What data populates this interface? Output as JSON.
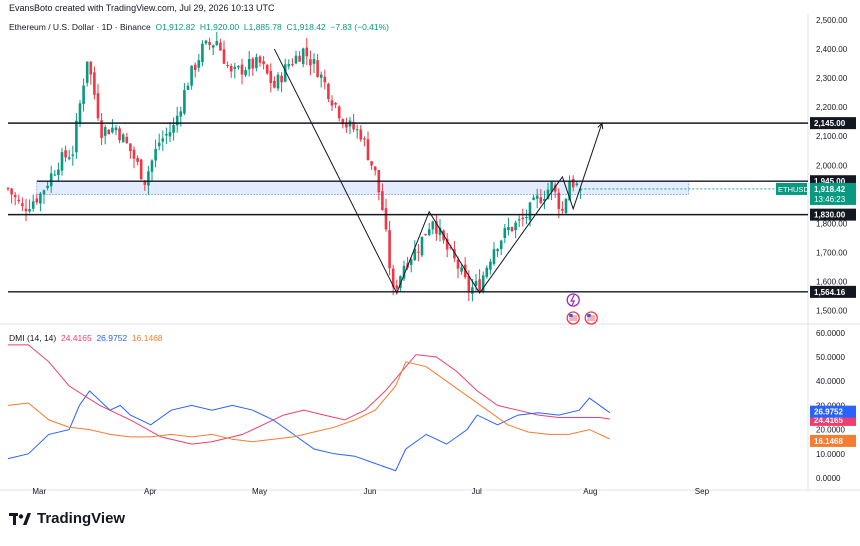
{
  "header": {
    "credit": "EvansBoto created with TradingView.com, Jul 29, 2026 10:13 UTC",
    "symbol_title": "Ethereum / U.S. Dollar · 1D · Binance",
    "ohlc": {
      "o": "O1,912.82",
      "h": "H1,920.00",
      "l": "L1,885.78",
      "c": "C1,918.42",
      "chg": "−7.83 (−0.41%)"
    }
  },
  "brand": {
    "name": "TradingView",
    "icon": "tradingview-logo-icon"
  },
  "colors": {
    "up": "#089981",
    "down": "#f23645",
    "dmi_minus": "#2962ff",
    "dmi_plus": "#f23d6d",
    "adx": "#f57c30",
    "zone": "#2962ff"
  },
  "chart_data": [
    {
      "type": "candlestick",
      "title": "Ethereum / U.S. Dollar · 1D · Binance",
      "symbol": "ETHUSD",
      "ylim": [
        1490,
        2500
      ],
      "y_ticks": [
        "2,500.00",
        "2,400.00",
        "2,300.00",
        "2,200.00",
        "2,100.00",
        "2,000.00",
        "1,900.00",
        "1,800.00",
        "1,700.00",
        "1,600.00",
        "1,500.00"
      ],
      "x_ticks": [
        "Mar",
        "Apr",
        "May",
        "Jun",
        "Jul",
        "Aug",
        "Sep"
      ],
      "close_path": [
        [
          "Feb 20",
          1920
        ],
        [
          "Feb 24",
          1850
        ],
        [
          "Mar 1",
          1900
        ],
        [
          "Mar 6",
          2010
        ],
        [
          "Mar 10",
          2050
        ],
        [
          "Mar 14",
          2370
        ],
        [
          "Mar 18",
          2120
        ],
        [
          "Mar 22",
          2130
        ],
        [
          "Mar 26",
          2050
        ],
        [
          "Mar 30",
          1950
        ],
        [
          "Apr 3",
          2080
        ],
        [
          "Apr 7",
          2130
        ],
        [
          "Apr 11",
          2290
        ],
        [
          "Apr 15",
          2400
        ],
        [
          "Apr 19",
          2430
        ],
        [
          "Apr 23",
          2310
        ],
        [
          "Apr 27",
          2340
        ],
        [
          "May 1",
          2350
        ],
        [
          "May 5",
          2270
        ],
        [
          "May 9",
          2350
        ],
        [
          "May 13",
          2395
        ],
        [
          "May 17",
          2330
        ],
        [
          "May 21",
          2230
        ],
        [
          "May 25",
          2140
        ],
        [
          "May 29",
          2110
        ],
        [
          "Jun 2",
          1970
        ],
        [
          "Jun 4",
          1850
        ],
        [
          "Jun 7",
          1560
        ],
        [
          "Jun 10",
          1660
        ],
        [
          "Jun 14",
          1720
        ],
        [
          "Jun 18",
          1820
        ],
        [
          "Jun 21",
          1730
        ],
        [
          "Jun 25",
          1650
        ],
        [
          "Jun 28",
          1570
        ],
        [
          "Jul 1",
          1590
        ],
        [
          "Jul 5",
          1720
        ],
        [
          "Jul 9",
          1780
        ],
        [
          "Jul 13",
          1810
        ],
        [
          "Jul 17",
          1880
        ],
        [
          "Jul 21",
          1930
        ],
        [
          "Jul 24",
          1840
        ],
        [
          "Jul 26",
          1950
        ],
        [
          "Jul 29",
          1918
        ]
      ],
      "horizontal_levels": [
        "2,145.00",
        "1,945.00",
        "1,830.00",
        "1,564.16"
      ],
      "support_zone": [
        1900,
        1945
      ],
      "price_label": {
        "symbol": "ETHUSD",
        "price": "1,918.42",
        "countdown": "13:46:23"
      },
      "trend_path": [
        [
          "May 5",
          2400
        ],
        [
          "Jun 8",
          1560
        ],
        [
          "Jun 17",
          1840
        ],
        [
          "Jul 1",
          1560
        ],
        [
          "Jul 24",
          1960
        ],
        [
          "Jul 27",
          1850
        ],
        [
          "Aug 4",
          2145
        ]
      ]
    },
    {
      "type": "line",
      "title": "DMI (14, 14)",
      "ylim": [
        0,
        60
      ],
      "y_ticks": [
        "60.0000",
        "50.0000",
        "40.0000",
        "30.0000",
        "20.0000",
        "10.0000",
        "0.0000"
      ],
      "series": [
        {
          "name": "",
          "value_label": "24.4165",
          "color": "#f23d6d",
          "values": [
            [
              0,
              55
            ],
            [
              2,
              55
            ],
            [
              4,
              48
            ],
            [
              6,
              38
            ],
            [
              9,
              30
            ],
            [
              12,
              24
            ],
            [
              15,
              17
            ],
            [
              18,
              14
            ],
            [
              20,
              15
            ],
            [
              23,
              18
            ],
            [
              25,
              22
            ],
            [
              27,
              26
            ],
            [
              29,
              28
            ],
            [
              31,
              26
            ],
            [
              33,
              24
            ],
            [
              35,
              28
            ],
            [
              37,
              36
            ],
            [
              39,
              46
            ],
            [
              40,
              51
            ],
            [
              42,
              50
            ],
            [
              44,
              44
            ],
            [
              46,
              36
            ],
            [
              48,
              30
            ],
            [
              50,
              28
            ],
            [
              52,
              26
            ],
            [
              54,
              25
            ],
            [
              56,
              25
            ],
            [
              58,
              25
            ],
            [
              59,
              24.4
            ]
          ]
        },
        {
          "name": "",
          "value_label": "26.9752",
          "color": "#2962ff",
          "values": [
            [
              0,
              8
            ],
            [
              2,
              10
            ],
            [
              4,
              18
            ],
            [
              6,
              20
            ],
            [
              7,
              30
            ],
            [
              8,
              36
            ],
            [
              10,
              28
            ],
            [
              11,
              30
            ],
            [
              12,
              26
            ],
            [
              14,
              22
            ],
            [
              16,
              28
            ],
            [
              18,
              30
            ],
            [
              20,
              28
            ],
            [
              22,
              30
            ],
            [
              24,
              28
            ],
            [
              26,
              24
            ],
            [
              28,
              18
            ],
            [
              30,
              12
            ],
            [
              32,
              10
            ],
            [
              34,
              9
            ],
            [
              36,
              6
            ],
            [
              38,
              3
            ],
            [
              39,
              12
            ],
            [
              41,
              18
            ],
            [
              43,
              14
            ],
            [
              45,
              20
            ],
            [
              46,
              26
            ],
            [
              48,
              22
            ],
            [
              50,
              26
            ],
            [
              52,
              27
            ],
            [
              54,
              26
            ],
            [
              56,
              28
            ],
            [
              57,
              33
            ],
            [
              59,
              27
            ]
          ]
        },
        {
          "name": "",
          "value_label": "16.1468",
          "color": "#f57c30",
          "values": [
            [
              0,
              30
            ],
            [
              2,
              31
            ],
            [
              4,
              24
            ],
            [
              6,
              21
            ],
            [
              8,
              20
            ],
            [
              10,
              18
            ],
            [
              12,
              17
            ],
            [
              14,
              17
            ],
            [
              16,
              18
            ],
            [
              18,
              17
            ],
            [
              20,
              18
            ],
            [
              22,
              16
            ],
            [
              24,
              15
            ],
            [
              26,
              16
            ],
            [
              28,
              17
            ],
            [
              30,
              19
            ],
            [
              32,
              21
            ],
            [
              34,
              24
            ],
            [
              36,
              28
            ],
            [
              38,
              38
            ],
            [
              39,
              48
            ],
            [
              41,
              46
            ],
            [
              43,
              40
            ],
            [
              45,
              34
            ],
            [
              47,
              28
            ],
            [
              49,
              22
            ],
            [
              51,
              19
            ],
            [
              53,
              18
            ],
            [
              55,
              18
            ],
            [
              57,
              20
            ],
            [
              59,
              16.1
            ]
          ]
        }
      ]
    }
  ]
}
